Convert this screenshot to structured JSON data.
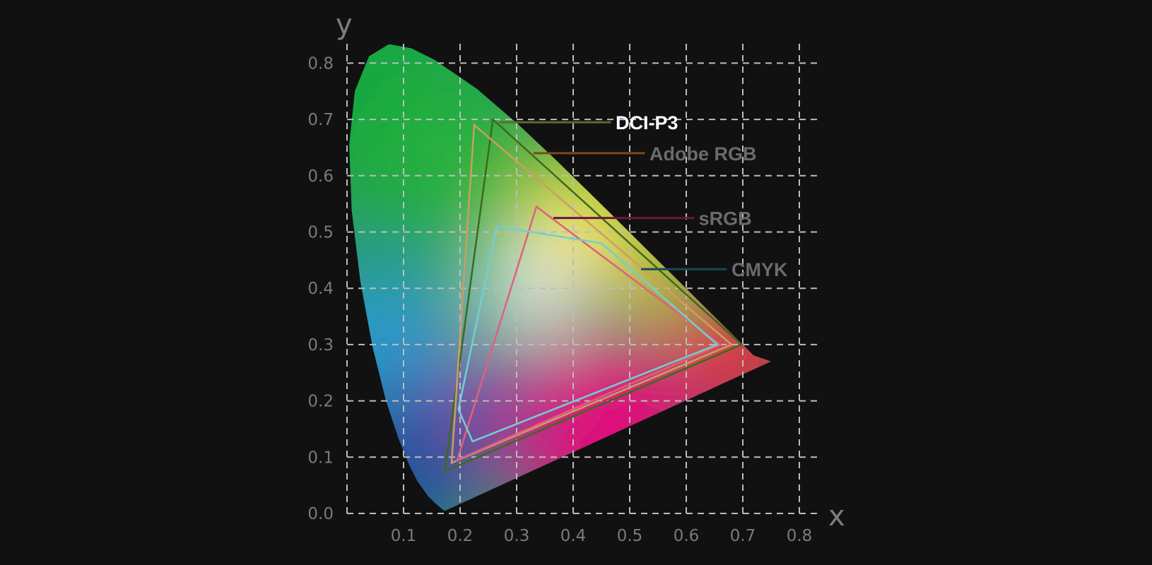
{
  "chart_data": {
    "type": "chromaticity-diagram",
    "xlabel": "x",
    "ylabel": "y",
    "xlim": [
      0,
      0.8
    ],
    "ylim": [
      0,
      0.8
    ],
    "grid": true,
    "grid_style": "dashed",
    "x_ticks": [
      "0.1",
      "0.2",
      "0.3",
      "0.4",
      "0.5",
      "0.6",
      "0.7",
      "0.8"
    ],
    "y_ticks": [
      "0.0",
      "0.1",
      "0.2",
      "0.3",
      "0.4",
      "0.5",
      "0.6",
      "0.7",
      "0.8"
    ],
    "background": "#111111",
    "series": [
      {
        "name": "DCI-P3",
        "color": "#3d6a1c",
        "label_color": "#ffffff",
        "leader_color": "#5e6b2a",
        "points": [
          [
            0.258,
            0.7
          ],
          [
            0.698,
            0.3
          ],
          [
            0.173,
            0.075
          ]
        ]
      },
      {
        "name": "Adobe RGB",
        "color": "#c8a060",
        "label_color": "#6b6b6b",
        "leader_color": "#7a4a1e",
        "points": [
          [
            0.225,
            0.69
          ],
          [
            0.68,
            0.3
          ],
          [
            0.185,
            0.09
          ]
        ]
      },
      {
        "name": "sRGB",
        "color": "#e0607a",
        "label_color": "#6b6b6b",
        "leader_color": "#6a1838",
        "points": [
          [
            0.335,
            0.545
          ],
          [
            0.66,
            0.3
          ],
          [
            0.195,
            0.095
          ]
        ]
      },
      {
        "name": "CMYK",
        "color": "#70d0d0",
        "label_color": "#6b6b6b",
        "leader_color": "#1a4858",
        "points": [
          [
            0.265,
            0.51
          ],
          [
            0.45,
            0.48
          ],
          [
            0.655,
            0.3
          ],
          [
            0.222,
            0.128
          ],
          [
            0.197,
            0.185
          ]
        ]
      }
    ]
  }
}
